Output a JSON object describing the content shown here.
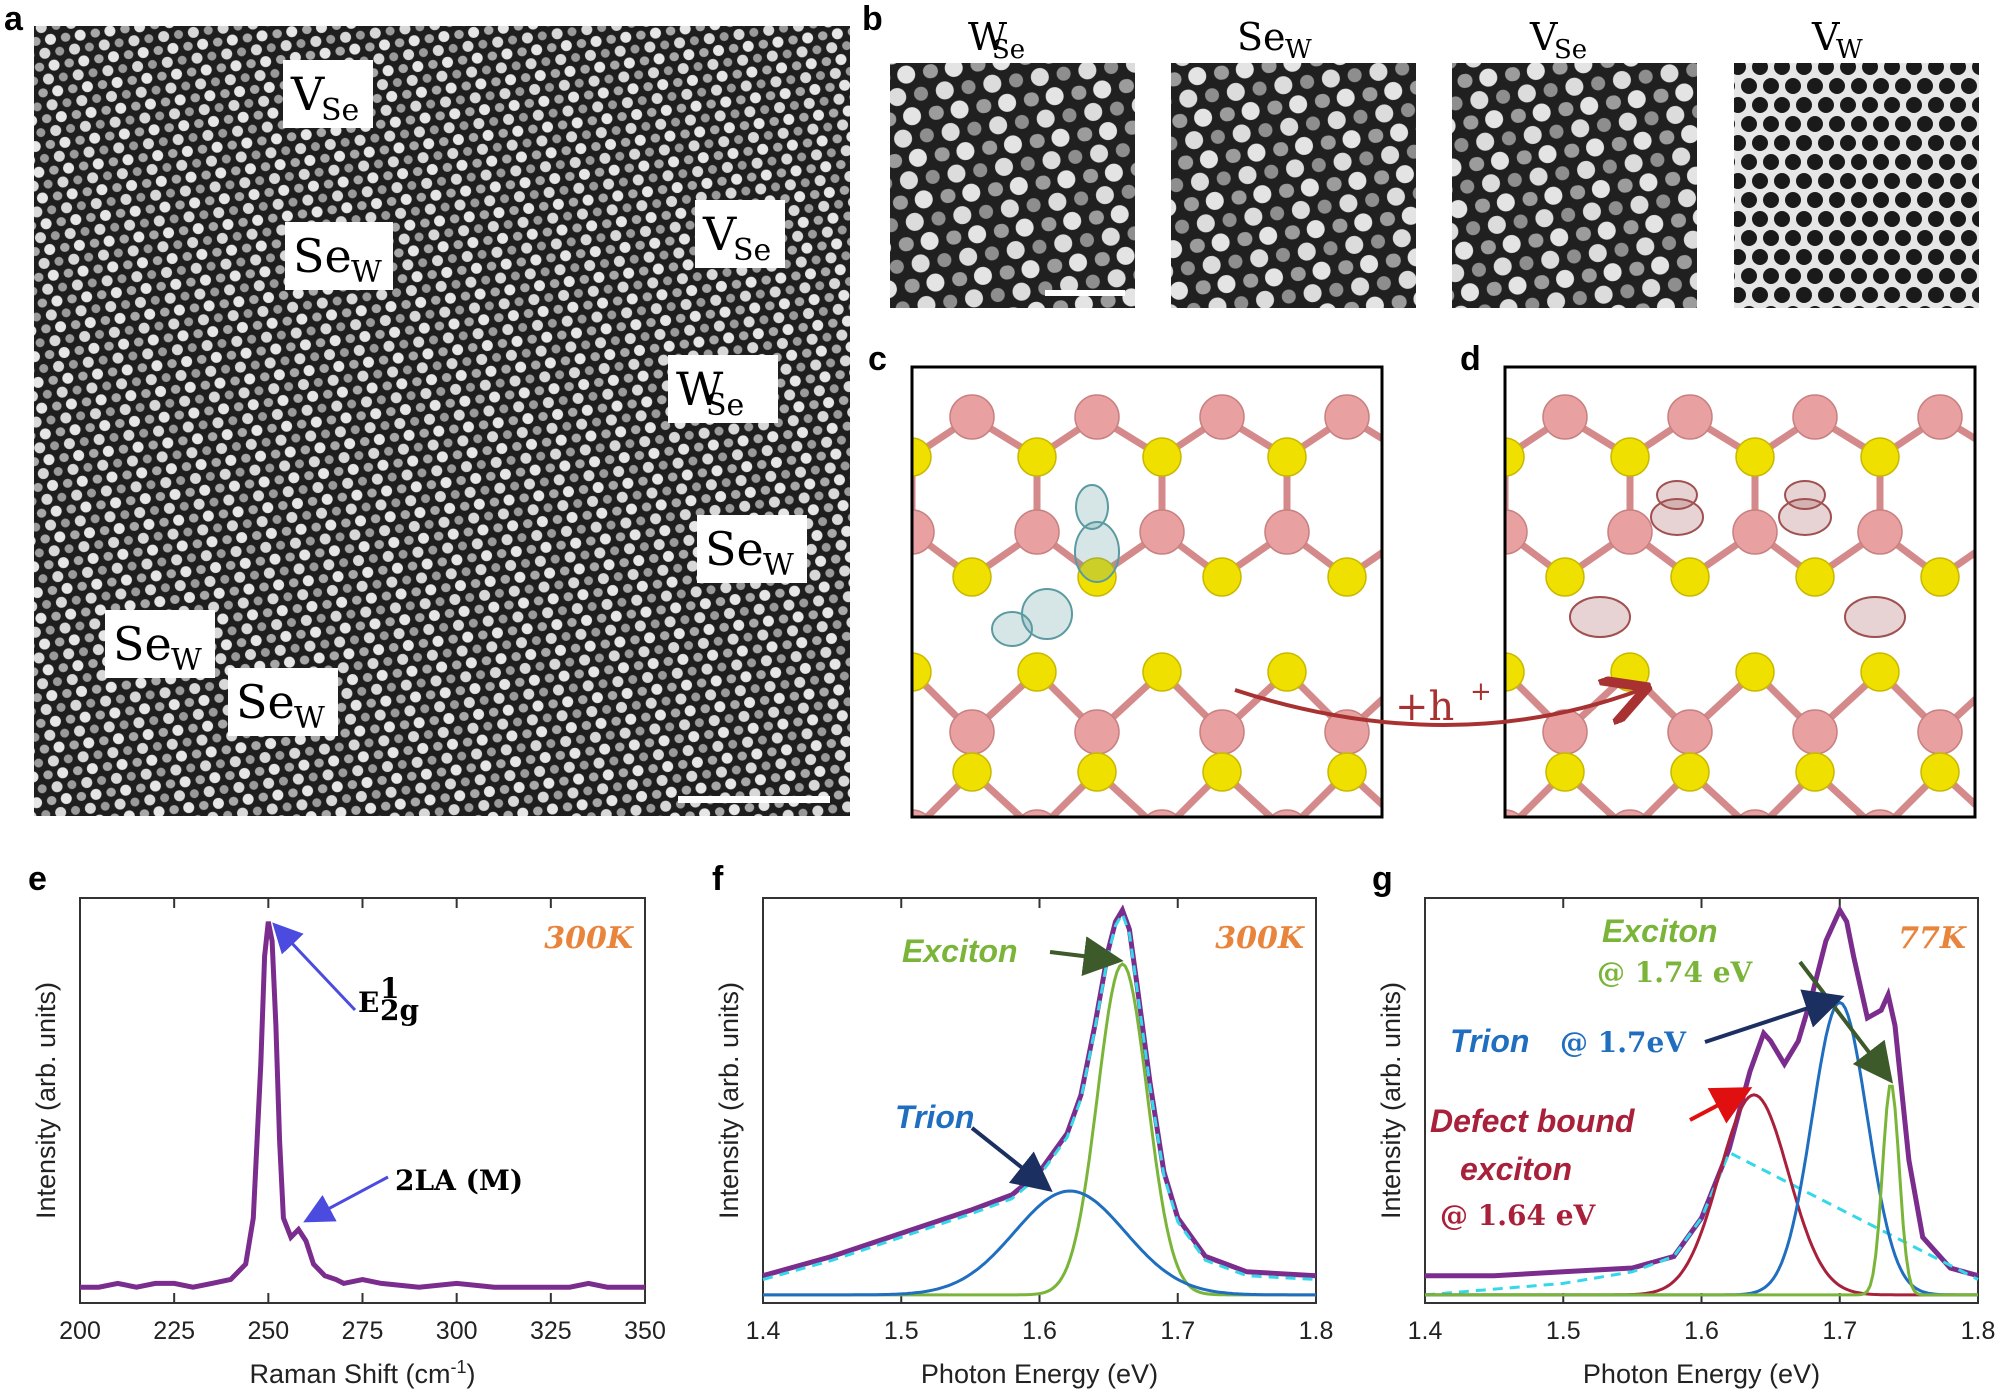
{
  "panel_letters": {
    "a": "a",
    "b": "b",
    "c": "c",
    "d": "d",
    "e": "e",
    "f": "f",
    "g": "g"
  },
  "panel_a": {
    "defect_labels": [
      {
        "main": "V",
        "sub": "Se"
      },
      {
        "main": "Se",
        "sub": "W"
      },
      {
        "main": "V",
        "sub": "Se"
      },
      {
        "main": "W",
        "sub": "Se"
      },
      {
        "main": "Se",
        "sub": "W"
      },
      {
        "main": "Se",
        "sub": "W"
      },
      {
        "main": "Se",
        "sub": "W"
      }
    ]
  },
  "panel_b": {
    "headers": [
      {
        "main": "W",
        "sub": "Se"
      },
      {
        "main": "Se",
        "sub": "W"
      },
      {
        "main": "V",
        "sub": "Se"
      },
      {
        "main": "V",
        "sub": "W"
      }
    ]
  },
  "panel_cd": {
    "hole_label": "+h",
    "hole_sup": "+",
    "colors": {
      "W": "#e8a0a0",
      "Se": "#f0e000",
      "bond_W": "#c08080",
      "arrow": "#a83232",
      "orbital_c": "#5a9aa0",
      "orbital_d": "#a05050"
    }
  },
  "chart_data": [
    {
      "panel": "e",
      "type": "line",
      "xlabel": "Raman Shift (cm",
      "xlabel_sup": "-1",
      "xlabel_end": ")",
      "ylabel": "Intensity (arb. units)",
      "xlim": [
        200,
        350
      ],
      "xticks": [
        "200",
        "225",
        "250",
        "275",
        "300",
        "325",
        "350"
      ],
      "temperature": "300K",
      "peak_labels": [
        {
          "text": "E",
          "sup": "1",
          "sub": "2g",
          "x": 250
        },
        {
          "text": "2LA (M)",
          "x": 258
        }
      ],
      "series": [
        {
          "color": "#7b2d8e",
          "x": [
            200,
            205,
            210,
            215,
            220,
            225,
            230,
            235,
            240,
            244,
            246,
            248,
            249,
            250,
            251,
            252,
            253,
            254,
            256,
            258,
            260,
            262,
            265,
            268,
            270,
            275,
            280,
            290,
            300,
            310,
            320,
            330,
            335,
            340,
            345,
            350
          ],
          "y": [
            0.02,
            0.02,
            0.03,
            0.02,
            0.03,
            0.03,
            0.02,
            0.03,
            0.04,
            0.08,
            0.2,
            0.6,
            0.88,
            0.97,
            0.92,
            0.7,
            0.4,
            0.2,
            0.15,
            0.17,
            0.14,
            0.08,
            0.05,
            0.04,
            0.03,
            0.04,
            0.03,
            0.02,
            0.03,
            0.02,
            0.02,
            0.02,
            0.03,
            0.02,
            0.02,
            0.02
          ]
        }
      ]
    },
    {
      "panel": "f",
      "type": "line",
      "xlabel": "Photon Energy (eV)",
      "ylabel": "Intensity (arb. units)",
      "xlim": [
        1.4,
        1.8
      ],
      "xticks": [
        "1.4",
        "1.5",
        "1.6",
        "1.7",
        "1.8"
      ],
      "temperature": "300K",
      "annotations": [
        {
          "text": "Exciton",
          "color": "#7ab53a"
        },
        {
          "text": "Trion",
          "color": "#1f6ec0"
        }
      ],
      "series": [
        {
          "name": "Data",
          "color": "#7b2d8e",
          "x": [
            1.4,
            1.45,
            1.5,
            1.55,
            1.58,
            1.6,
            1.62,
            1.63,
            1.64,
            1.65,
            1.655,
            1.66,
            1.665,
            1.67,
            1.68,
            1.69,
            1.7,
            1.72,
            1.75,
            1.8
          ],
          "y": [
            0.05,
            0.1,
            0.16,
            0.22,
            0.26,
            0.32,
            0.42,
            0.52,
            0.7,
            0.9,
            0.97,
            1.0,
            0.95,
            0.82,
            0.55,
            0.32,
            0.2,
            0.1,
            0.06,
            0.05
          ]
        },
        {
          "name": "Fit",
          "color": "#35d8e8",
          "x": [
            1.4,
            1.45,
            1.5,
            1.55,
            1.58,
            1.6,
            1.62,
            1.63,
            1.64,
            1.65,
            1.655,
            1.66,
            1.665,
            1.67,
            1.68,
            1.69,
            1.7,
            1.72,
            1.75,
            1.8
          ],
          "y": [
            0.04,
            0.09,
            0.15,
            0.21,
            0.25,
            0.31,
            0.41,
            0.51,
            0.69,
            0.89,
            0.96,
            0.99,
            0.94,
            0.81,
            0.54,
            0.31,
            0.19,
            0.09,
            0.05,
            0.04
          ]
        },
        {
          "name": "Exciton",
          "color": "#7ab53a",
          "peak": 1.66,
          "amp": 0.86,
          "width": 0.018
        },
        {
          "name": "Trion",
          "color": "#1f6ec0",
          "peak": 1.622,
          "amp": 0.27,
          "width": 0.04
        }
      ]
    },
    {
      "panel": "g",
      "type": "line",
      "xlabel": "Photon Energy (eV)",
      "ylabel": "Intensity (arb. units)",
      "xlim": [
        1.4,
        1.8
      ],
      "xticks": [
        "1.4",
        "1.5",
        "1.6",
        "1.7",
        "1.8"
      ],
      "temperature": "77K",
      "annotations": [
        {
          "text": "Exciton",
          "value": "@ 1.74 eV",
          "color": "#7ab53a"
        },
        {
          "text": "Trion",
          "value": "@ 1.7eV",
          "color": "#1f6ec0"
        },
        {
          "text": "Defect bound",
          "text2": "exciton",
          "value": "@ 1.64 eV",
          "color": "#a8203a"
        }
      ],
      "series": [
        {
          "name": "Data",
          "color": "#7b2d8e",
          "x": [
            1.4,
            1.45,
            1.5,
            1.55,
            1.58,
            1.6,
            1.62,
            1.635,
            1.645,
            1.65,
            1.66,
            1.67,
            1.68,
            1.69,
            1.7,
            1.705,
            1.71,
            1.72,
            1.73,
            1.735,
            1.74,
            1.75,
            1.76,
            1.78,
            1.8
          ],
          "y": [
            0.05,
            0.05,
            0.06,
            0.07,
            0.1,
            0.2,
            0.38,
            0.58,
            0.68,
            0.66,
            0.6,
            0.66,
            0.78,
            0.92,
            1.0,
            0.97,
            0.88,
            0.72,
            0.74,
            0.78,
            0.7,
            0.35,
            0.15,
            0.07,
            0.05
          ]
        },
        {
          "name": "Fit",
          "color": "#35d8e8",
          "x": [
            1.4,
            1.5,
            1.55,
            1.58,
            1.6,
            1.62,
            1.8
          ],
          "y": [
            0.0,
            0.03,
            0.06,
            0.1,
            0.2,
            0.37,
            0.04
          ]
        },
        {
          "name": "Defect bound exciton",
          "color": "#a8203a",
          "peak": 1.638,
          "amp": 0.52,
          "width": 0.025
        },
        {
          "name": "Trion",
          "color": "#1f6ec0",
          "peak": 1.7,
          "amp": 0.76,
          "width": 0.02
        },
        {
          "name": "Exciton",
          "color": "#7ab53a",
          "peak": 1.737,
          "amp": 0.55,
          "width": 0.006
        }
      ]
    }
  ]
}
